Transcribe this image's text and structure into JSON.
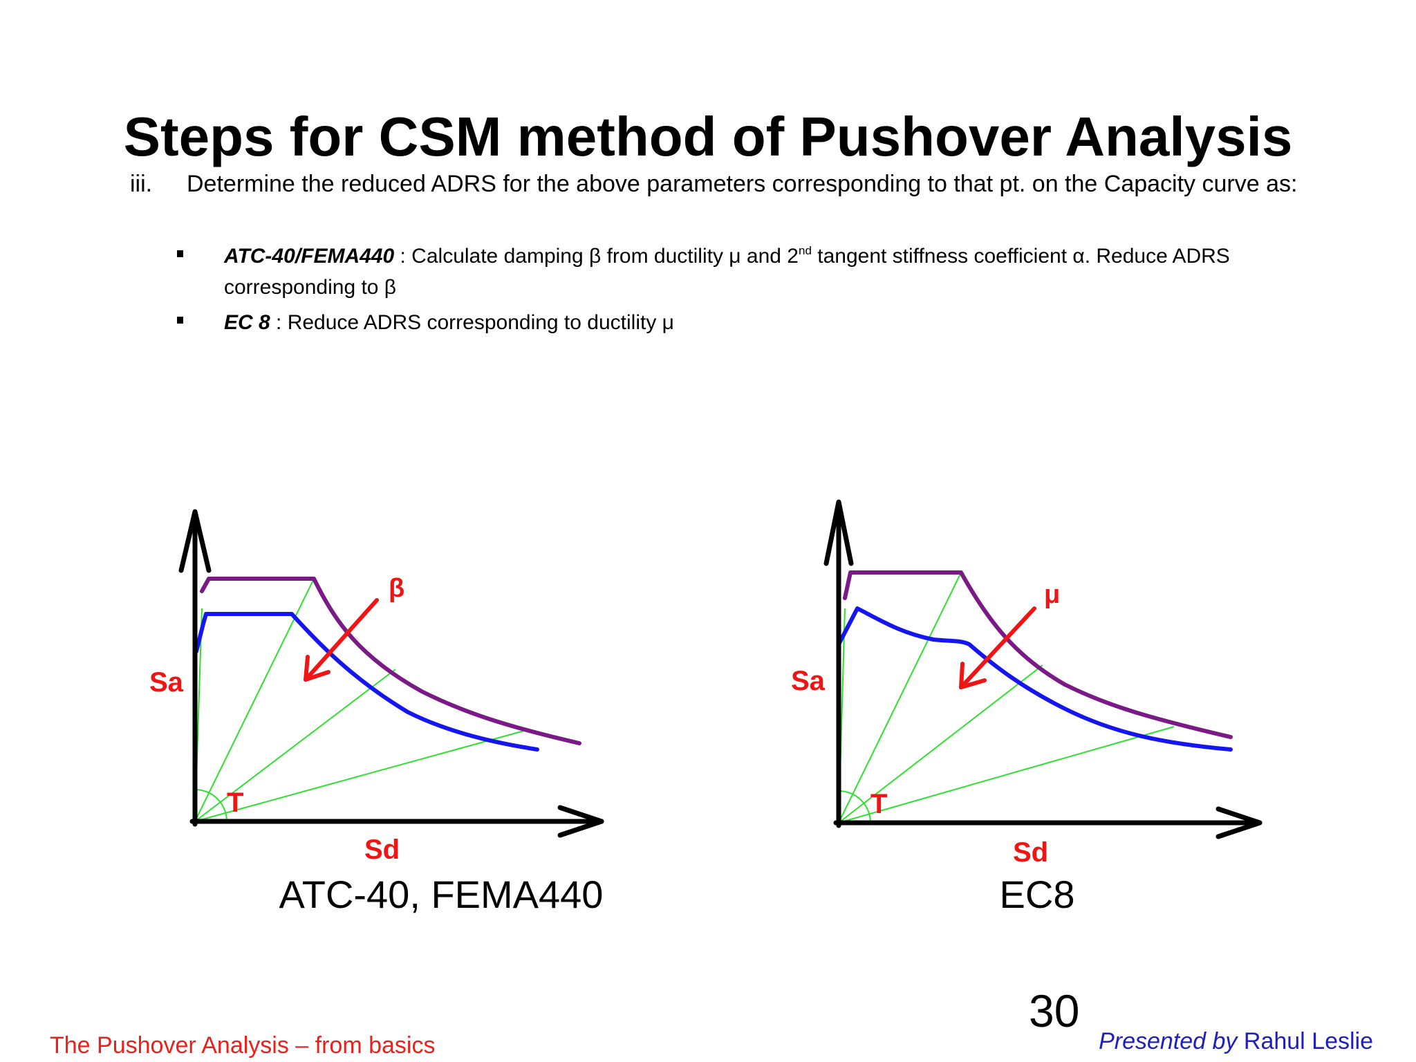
{
  "slide": {
    "title": "Steps for CSM method of Pushover Analysis",
    "step": {
      "number": "iii.",
      "text": "Determine the reduced ADRS for the above parameters corresponding to that pt. on the Capacity curve as:"
    },
    "bullets": [
      {
        "key": "ATC-40/FEMA440",
        "text_a": " : Calculate damping β from ductility μ and 2",
        "sup": "nd",
        "text_b": " tangent stiffness coefficient α. Reduce ADRS corresponding to β"
      },
      {
        "key": "EC 8",
        "text_a": " : Reduce ADRS corresponding to ductility μ"
      }
    ],
    "figures": [
      {
        "caption": "ATC-40, FEMA440",
        "y_label": "Sa",
        "x_label": "Sd",
        "period_label": "T",
        "arrow_label": "β"
      },
      {
        "caption": "EC8",
        "y_label": "Sa",
        "x_label": "Sd",
        "period_label": "T",
        "arrow_label": "μ"
      }
    ],
    "page_number": "30",
    "footer_left": "The Pushover Analysis – from basics",
    "footer_right_prefix": "Presented by",
    "footer_right_name": " Rahul Leslie"
  },
  "colors": {
    "elastic_spectrum": "#7a1a86",
    "reduced_spectrum": "#1515f0",
    "period_lines": "#2ee02e",
    "labels_and_arrow": "#f01414",
    "axes": "#000000",
    "footer_left": "#e8211d",
    "footer_right": "#1f1fbf"
  }
}
